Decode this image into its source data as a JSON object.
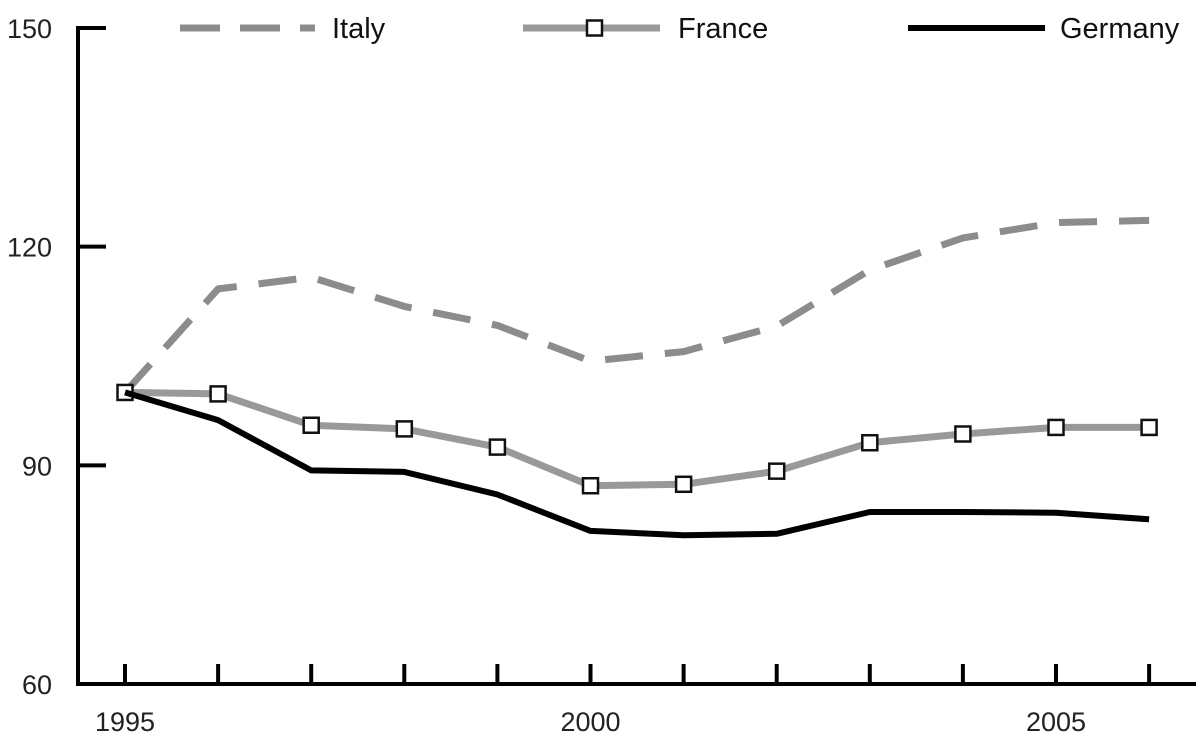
{
  "chart_data": {
    "type": "line",
    "x": [
      1995,
      1996,
      1997,
      1998,
      1999,
      2000,
      2001,
      2002,
      2003,
      2004,
      2005,
      2006
    ],
    "x_tick_labels": [
      "1995",
      "2000",
      "2005"
    ],
    "x_tick_values": [
      1995,
      2000,
      2005
    ],
    "y_tick_labels": [
      "60",
      "90",
      "120",
      "150"
    ],
    "y_tick_values": [
      60,
      90,
      120,
      150
    ],
    "ylim": [
      60,
      150
    ],
    "xlim": [
      1995,
      2006
    ],
    "grid": false,
    "legend_position": "top",
    "series": [
      {
        "name": "Italy",
        "style": "dashed",
        "color": "#8c8c8c",
        "values": [
          100,
          114.2,
          115.8,
          111.8,
          109.2,
          104.3,
          105.6,
          109.1,
          116.8,
          121.2,
          123.3,
          123.6
        ]
      },
      {
        "name": "France",
        "style": "solid-square-markers",
        "color": "#999999",
        "values": [
          100,
          99.8,
          95.5,
          95.0,
          92.5,
          87.2,
          87.4,
          89.2,
          93.1,
          94.3,
          95.2,
          95.2
        ]
      },
      {
        "name": "Germany",
        "style": "solid",
        "color": "#000000",
        "values": [
          100,
          96.2,
          89.3,
          89.1,
          86.0,
          81.0,
          80.4,
          80.6,
          83.6,
          83.6,
          83.5,
          82.6
        ]
      }
    ]
  }
}
